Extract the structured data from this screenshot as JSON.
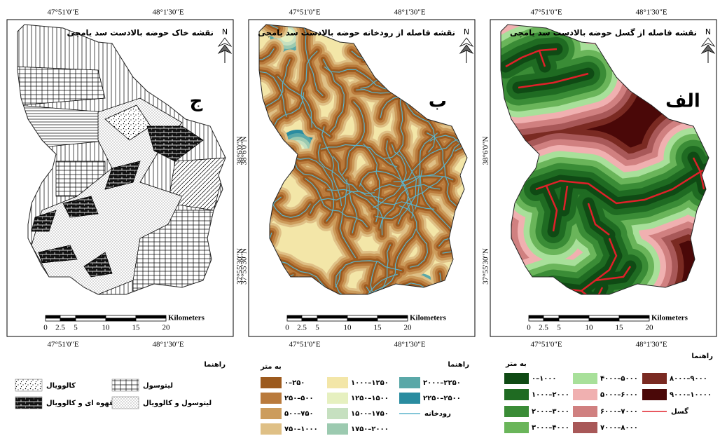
{
  "north": "N",
  "panels": [
    {
      "title": "نقشه خاک حوضه بالادست سد یامچی",
      "letter": "ج",
      "lon_labels": [
        "47°51'0\"E",
        "48°1'30\"E"
      ],
      "lat_labels": [
        "38°6'0\"N",
        "37°55'30\"N"
      ],
      "scale_labels": [
        "0",
        "2.5",
        "5",
        "10",
        "15",
        "20"
      ],
      "scale_unit": "Kilometers",
      "legend": {
        "title": "راهنما",
        "items": [
          {
            "label": "کالوویال"
          },
          {
            "label": "لیتوسول"
          },
          {
            "label": "قهوه ای و کالوویال"
          },
          {
            "label": "لیتوسول و کالوویال"
          }
        ]
      }
    },
    {
      "title": "نقشه فاصله از رودخانه حوضه بالادست سد یامچی",
      "letter": "ب",
      "lon_labels": [
        "47°51'0\"E",
        "48°1'30\"E"
      ],
      "lat_labels": [
        "38°6'0\"N",
        "37°55'30\"N"
      ],
      "scale_labels": [
        "0",
        "2.5",
        "5",
        "10",
        "15",
        "20"
      ],
      "scale_unit": "Kilometers",
      "legend": {
        "title": "راهنما",
        "unit": "به متر",
        "items": [
          {
            "label": "۰–۲۵۰",
            "color": "#9c5a1e"
          },
          {
            "label": "۲۵۰–۵۰۰",
            "color": "#b97a3c"
          },
          {
            "label": "۵۰۰–۷۵۰",
            "color": "#cc9c5c"
          },
          {
            "label": "۷۵۰–۱۰۰۰",
            "color": "#dfc086"
          },
          {
            "label": "۱۰۰۰–۱۲۵۰",
            "color": "#f3e6a8"
          },
          {
            "label": "۱۲۵۰–۱۵۰۰",
            "color": "#e6f0c0"
          },
          {
            "label": "۱۵۰۰–۱۷۵۰",
            "color": "#c6e0c0"
          },
          {
            "label": "۱۷۵۰–۲۰۰۰",
            "color": "#9ccab0"
          },
          {
            "label": "۲۰۰۰–۲۲۵۰",
            "color": "#5aa8a8"
          },
          {
            "label": "۲۲۵۰–۲۵۰۰",
            "color": "#2a8ca0"
          }
        ],
        "line": {
          "label": "رودخانه",
          "color": "#5ab4cc"
        }
      }
    },
    {
      "title": "نقشه فاصله از گسل حوضه بالادست سد یامچی",
      "letter": "الف",
      "lon_labels": [
        "47°51'0\"E",
        "48°1'30\"E"
      ],
      "lat_labels": [
        "38°6'0\"N",
        "37°55'30\"N"
      ],
      "scale_labels": [
        "0",
        "2.5",
        "5",
        "10",
        "15",
        "20"
      ],
      "scale_unit": "Kilometers",
      "legend": {
        "title": "راهنما",
        "unit": "به متر",
        "items": [
          {
            "label": "۰–۱۰۰۰",
            "color": "#0f4a14"
          },
          {
            "label": "۱۰۰۰–۲۰۰۰",
            "color": "#1f6b22"
          },
          {
            "label": "۲۰۰۰–۳۰۰۰",
            "color": "#3a8c36"
          },
          {
            "label": "۳۰۰۰–۴۰۰۰",
            "color": "#6ab55a"
          },
          {
            "label": "۴۰۰۰–۵۰۰۰",
            "color": "#a8e09a"
          },
          {
            "label": "۵۰۰۰–۶۰۰۰",
            "color": "#f0b0b0"
          },
          {
            "label": "۶۰۰۰–۷۰۰۰",
            "color": "#d08080"
          },
          {
            "label": "۷۰۰۰–۸۰۰۰",
            "color": "#a85858"
          },
          {
            "label": "۸۰۰۰–۹۰۰۰",
            "color": "#7a2a22"
          },
          {
            "label": "۹۰۰۰–۱۰۰۰۰",
            "color": "#4a0808"
          }
        ],
        "line": {
          "label": "گسل",
          "color": "#e0202a"
        }
      }
    }
  ]
}
